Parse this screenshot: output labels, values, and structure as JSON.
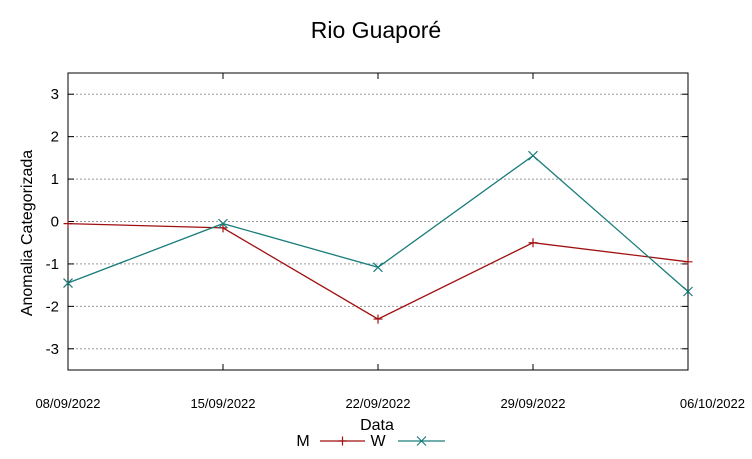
{
  "chart_data": {
    "type": "line",
    "title": "Rio Guaporé",
    "xlabel": "Data",
    "ylabel": "Anomalia Categorizada",
    "categories": [
      "08/09/2022",
      "15/09/2022",
      "22/09/2022",
      "29/09/2022",
      "06/10/2022"
    ],
    "ylim": [
      -3.5,
      3.5
    ],
    "yticks": [
      -3,
      -2,
      -1,
      0,
      1,
      2,
      3
    ],
    "grid": true,
    "legend_position": "bottom-center",
    "series": [
      {
        "name": "M",
        "color": "#a01010",
        "marker": "plus",
        "values": [
          -0.05,
          -0.15,
          -2.3,
          -0.5,
          -0.95
        ]
      },
      {
        "name": "W",
        "color": "#1a7c7c",
        "marker": "cross",
        "values": [
          -1.45,
          -0.05,
          -1.08,
          1.55,
          -1.65
        ]
      }
    ]
  }
}
